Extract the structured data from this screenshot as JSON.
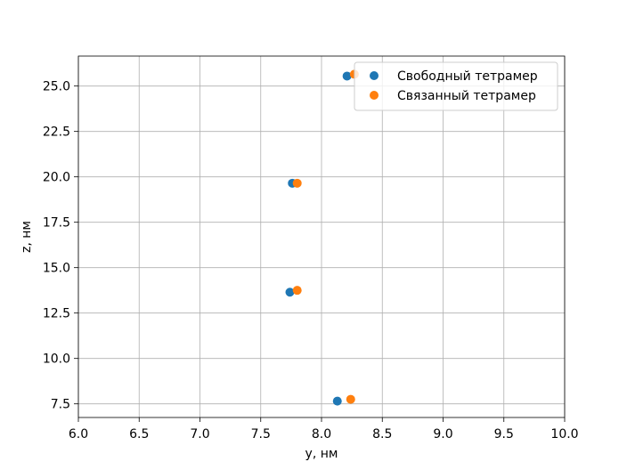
{
  "chart_data": {
    "type": "scatter",
    "title": "",
    "xlabel": "y, нм",
    "ylabel": "z, нм",
    "xlim": [
      6.0,
      10.0
    ],
    "ylim": [
      6.75,
      26.65
    ],
    "xticks": [
      "6.0",
      "6.5",
      "7.0",
      "7.5",
      "8.0",
      "8.5",
      "9.0",
      "9.5",
      "10.0"
    ],
    "yticks": [
      "7.5",
      "10.0",
      "12.5",
      "15.0",
      "17.5",
      "20.0",
      "22.5",
      "25.0"
    ],
    "grid": true,
    "legend_position": "top-right",
    "series": [
      {
        "name": "Свободный тетрамер",
        "color": "#1f77b4",
        "x": [
          8.13,
          7.74,
          7.76,
          8.21
        ],
        "y": [
          7.65,
          13.65,
          19.65,
          25.55
        ]
      },
      {
        "name": "Связанный тетрамер",
        "color": "#ff7f0e",
        "x": [
          8.24,
          7.8,
          7.8,
          8.27
        ],
        "y": [
          7.75,
          13.75,
          19.65,
          25.65
        ]
      }
    ]
  }
}
